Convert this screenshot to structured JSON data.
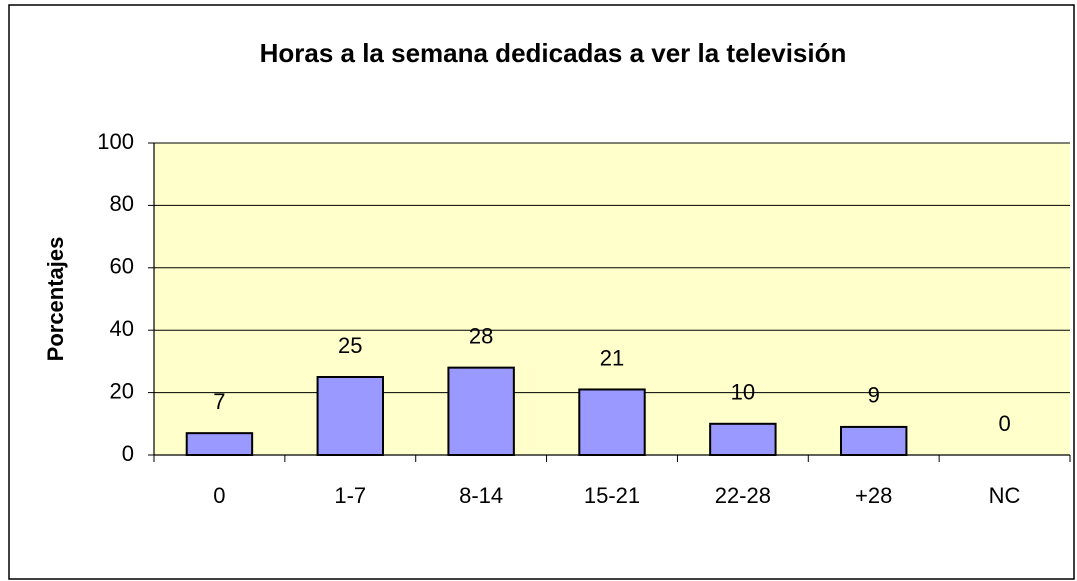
{
  "chart_data": {
    "type": "bar",
    "title": "Horas a la semana dedicadas a ver la televisión",
    "y_label": "Porcentajes",
    "categories": [
      "0",
      "1-7",
      "8-14",
      "15-21",
      "22-28",
      "+28",
      "NC"
    ],
    "values": [
      7,
      25,
      28,
      21,
      10,
      9,
      0
    ],
    "color": "#9999ff",
    "plot_background": "#ffffcc",
    "ylim": [
      0,
      100
    ],
    "yticks": [
      0,
      20,
      40,
      60,
      80,
      100
    ],
    "grid": true
  }
}
